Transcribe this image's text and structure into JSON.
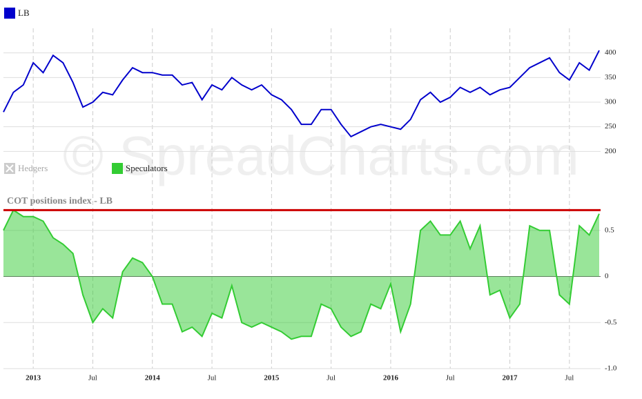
{
  "chart_data": [
    {
      "type": "line",
      "x": [
        "2012-10",
        "2012-11",
        "2012-12",
        "2013-01",
        "2013-02",
        "2013-03",
        "2013-04",
        "2013-05",
        "2013-06",
        "2013-07",
        "2013-08",
        "2013-09",
        "2013-10",
        "2013-11",
        "2013-12",
        "2014-01",
        "2014-02",
        "2014-03",
        "2014-04",
        "2014-05",
        "2014-06",
        "2014-07",
        "2014-08",
        "2014-09",
        "2014-10",
        "2014-11",
        "2014-12",
        "2015-01",
        "2015-02",
        "2015-03",
        "2015-04",
        "2015-05",
        "2015-06",
        "2015-07",
        "2015-08",
        "2015-09",
        "2015-10",
        "2015-11",
        "2015-12",
        "2016-01",
        "2016-02",
        "2016-03",
        "2016-04",
        "2016-05",
        "2016-06",
        "2016-07",
        "2016-08",
        "2016-09",
        "2016-10",
        "2016-11",
        "2016-12",
        "2017-01",
        "2017-02",
        "2017-03",
        "2017-04",
        "2017-05",
        "2017-06",
        "2017-07",
        "2017-08",
        "2017-09",
        "2017-10"
      ],
      "xlim": [
        "2012-10",
        "2017-10"
      ],
      "series": [
        {
          "name": "LB",
          "color": "#0000cc",
          "values": [
            280,
            320,
            335,
            380,
            360,
            395,
            380,
            340,
            290,
            300,
            320,
            315,
            345,
            370,
            360,
            360,
            355,
            355,
            335,
            340,
            305,
            335,
            325,
            350,
            335,
            325,
            335,
            315,
            305,
            285,
            255,
            255,
            285,
            285,
            255,
            230,
            240,
            250,
            255,
            250,
            245,
            265,
            305,
            320,
            300,
            310,
            330,
            320,
            330,
            315,
            325,
            330,
            350,
            370,
            380,
            390,
            360,
            345,
            380,
            365,
            405
          ]
        }
      ],
      "ylim": [
        150,
        450
      ],
      "yticks": [
        200,
        250,
        300,
        350,
        400
      ],
      "grid": true,
      "watermark": "© SpreadCharts.com"
    },
    {
      "type": "area",
      "title": "COT positions index - LB",
      "x": [
        "2012-10",
        "2012-11",
        "2012-12",
        "2013-01",
        "2013-02",
        "2013-03",
        "2013-04",
        "2013-05",
        "2013-06",
        "2013-07",
        "2013-08",
        "2013-09",
        "2013-10",
        "2013-11",
        "2013-12",
        "2014-01",
        "2014-02",
        "2014-03",
        "2014-04",
        "2014-05",
        "2014-06",
        "2014-07",
        "2014-08",
        "2014-09",
        "2014-10",
        "2014-11",
        "2014-12",
        "2015-01",
        "2015-02",
        "2015-03",
        "2015-04",
        "2015-05",
        "2015-06",
        "2015-07",
        "2015-08",
        "2015-09",
        "2015-10",
        "2015-11",
        "2015-12",
        "2016-01",
        "2016-02",
        "2016-03",
        "2016-04",
        "2016-05",
        "2016-06",
        "2016-07",
        "2016-08",
        "2016-09",
        "2016-10",
        "2016-11",
        "2016-12",
        "2017-01",
        "2017-02",
        "2017-03",
        "2017-04",
        "2017-05",
        "2017-06",
        "2017-07",
        "2017-08",
        "2017-09",
        "2017-10"
      ],
      "xlim": [
        "2012-10",
        "2017-10"
      ],
      "xticks": [
        {
          "value": "2013-01",
          "label": "2013"
        },
        {
          "value": "2013-07",
          "label": "Jul"
        },
        {
          "value": "2014-01",
          "label": "2014"
        },
        {
          "value": "2014-07",
          "label": "Jul"
        },
        {
          "value": "2015-01",
          "label": "2015"
        },
        {
          "value": "2015-07",
          "label": "Jul"
        },
        {
          "value": "2016-01",
          "label": "2016"
        },
        {
          "value": "2016-07",
          "label": "Jul"
        },
        {
          "value": "2017-01",
          "label": "2017"
        },
        {
          "value": "2017-07",
          "label": "Jul"
        }
      ],
      "series": [
        {
          "name": "Hedgers",
          "color": "#aaaaaa",
          "visible": false
        },
        {
          "name": "Speculators",
          "color": "#33cc33",
          "visible": true,
          "values": [
            0.5,
            0.72,
            0.65,
            0.65,
            0.6,
            0.42,
            0.35,
            0.25,
            -0.2,
            -0.5,
            -0.35,
            -0.45,
            0.05,
            0.2,
            0.15,
            0.0,
            -0.3,
            -0.3,
            -0.6,
            -0.55,
            -0.65,
            -0.4,
            -0.45,
            -0.1,
            -0.5,
            -0.55,
            -0.5,
            -0.55,
            -0.6,
            -0.68,
            -0.65,
            -0.65,
            -0.3,
            -0.35,
            -0.55,
            -0.65,
            -0.6,
            -0.3,
            -0.35,
            -0.08,
            -0.6,
            -0.3,
            0.5,
            0.6,
            0.45,
            0.45,
            0.6,
            0.3,
            0.55,
            -0.2,
            -0.15,
            -0.45,
            -0.3,
            0.55,
            0.5,
            0.5,
            -0.2,
            -0.3,
            0.55,
            0.45,
            0.68
          ]
        }
      ],
      "hline": {
        "value": 0.72,
        "color": "#cc0000"
      },
      "ylim": [
        -1.0,
        1.0
      ],
      "yticks": [
        {
          "value": -1.0,
          "label": "-1.0"
        },
        -0.5,
        0,
        0.5
      ],
      "grid": true
    }
  ]
}
